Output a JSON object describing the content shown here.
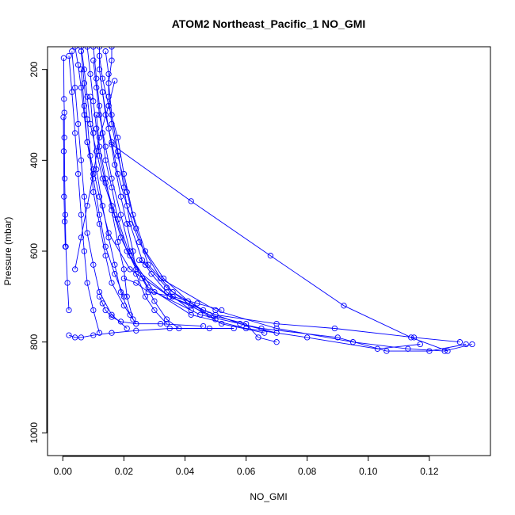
{
  "chart_data": {
    "type": "line",
    "title": "ATOM2 Northeast_Pacific_1 NO_GMI",
    "xlabel": "NO_GMI",
    "ylabel": "Pressure (mbar)",
    "xlim": [
      -0.005,
      0.14
    ],
    "ylim": [
      1050,
      150
    ],
    "y_reversed": true,
    "x_ticks": [
      0.0,
      0.02,
      0.04,
      0.06,
      0.08,
      0.1,
      0.12
    ],
    "x_tick_labels": [
      "0.00",
      "0.02",
      "0.04",
      "0.06",
      "0.08",
      "0.10",
      "0.12"
    ],
    "y_ticks": [
      200,
      400,
      600,
      800,
      1000
    ],
    "y_tick_labels": [
      "200",
      "400",
      "600",
      "800",
      "1000"
    ],
    "grid": false,
    "legend": "none",
    "marker": "open-circle",
    "line_color": "#0000ff",
    "series": [
      {
        "x": [
          0.004,
          0.005,
          0.006,
          0.007,
          0.008,
          0.01,
          0.012,
          0.015,
          0.022,
          0.035,
          0.048,
          0.06,
          0.064,
          0.07
        ],
        "y": [
          150,
          190,
          240,
          300,
          360,
          420,
          480,
          560,
          640,
          700,
          740,
          760,
          790,
          800
        ]
      },
      {
        "x": [
          0.006,
          0.007,
          0.008,
          0.009,
          0.011,
          0.013,
          0.016,
          0.019,
          0.024,
          0.035,
          0.05,
          0.07,
          0.089,
          0.115,
          0.13
        ],
        "y": [
          150,
          200,
          260,
          320,
          380,
          440,
          500,
          570,
          640,
          700,
          740,
          760,
          770,
          790,
          800
        ]
      },
      {
        "x": [
          0.008,
          0.009,
          0.01,
          0.011,
          0.012,
          0.014,
          0.017,
          0.021,
          0.028,
          0.042,
          0.06,
          0.08,
          0.103,
          0.117
        ],
        "y": [
          150,
          210,
          270,
          330,
          390,
          450,
          520,
          600,
          680,
          740,
          770,
          790,
          815,
          805
        ]
      },
      {
        "x": [
          0.01,
          0.011,
          0.012,
          0.013,
          0.014,
          0.016,
          0.018,
          0.022,
          0.03,
          0.045,
          0.065,
          0.09,
          0.106,
          0.12,
          0.132
        ],
        "y": [
          150,
          220,
          280,
          340,
          400,
          460,
          530,
          610,
          690,
          740,
          770,
          790,
          820,
          820,
          805
        ]
      },
      {
        "x": [
          0.012,
          0.012,
          0.013,
          0.014,
          0.016,
          0.018,
          0.021,
          0.025,
          0.032,
          0.05,
          0.07,
          0.095,
          0.113,
          0.125,
          0.134
        ],
        "y": [
          150,
          200,
          250,
          300,
          360,
          430,
          500,
          580,
          660,
          730,
          770,
          800,
          815,
          820,
          805
        ]
      },
      {
        "x": [
          0.016,
          0.016,
          0.015,
          0.016,
          0.018,
          0.02,
          0.022,
          0.026,
          0.034,
          0.042,
          0.052,
          0.066
        ],
        "y": [
          150,
          180,
          230,
          300,
          380,
          460,
          540,
          620,
          680,
          720,
          760,
          780
        ]
      },
      {
        "x": [
          0.014,
          0.015,
          0.015,
          0.016,
          0.018,
          0.021,
          0.024,
          0.028,
          0.036,
          0.046,
          0.058,
          0.07
        ],
        "y": [
          160,
          210,
          260,
          320,
          390,
          470,
          550,
          630,
          690,
          730,
          760,
          780
        ]
      },
      {
        "x": [
          0.012,
          0.013,
          0.015,
          0.018,
          0.02,
          0.023,
          0.027,
          0.033,
          0.041,
          0.05
        ],
        "y": [
          170,
          220,
          280,
          350,
          430,
          520,
          600,
          660,
          710,
          750
        ]
      },
      {
        "x": [
          0.01,
          0.011,
          0.012,
          0.014,
          0.016,
          0.019,
          0.022,
          0.026,
          0.03,
          0.034,
          0.038
        ],
        "y": [
          180,
          240,
          300,
          370,
          440,
          520,
          600,
          660,
          710,
          750,
          770
        ]
      },
      {
        "x": [
          0.006,
          0.007,
          0.008,
          0.009,
          0.01,
          0.012,
          0.014,
          0.016,
          0.02,
          0.024
        ],
        "y": [
          160,
          230,
          310,
          390,
          470,
          540,
          610,
          670,
          720,
          760
        ]
      },
      {
        "x": [
          0.003,
          0.004,
          0.005,
          0.006,
          0.007,
          0.008,
          0.01,
          0.012,
          0.016,
          0.021
        ],
        "y": [
          160,
          240,
          320,
          400,
          480,
          560,
          630,
          690,
          740,
          770
        ]
      },
      {
        "x": [
          0.002,
          0.003,
          0.004,
          0.005,
          0.006,
          0.007,
          0.008,
          0.01,
          0.012
        ],
        "y": [
          170,
          250,
          340,
          430,
          520,
          600,
          670,
          730,
          780
        ]
      },
      {
        "x": [
          0.013,
          0.015,
          0.017,
          0.019,
          0.021,
          0.023,
          0.024,
          0.027,
          0.03,
          0.034
        ],
        "y": [
          250,
          330,
          410,
          480,
          540,
          600,
          650,
          700,
          730,
          760
        ]
      },
      {
        "x": [
          0.009,
          0.01,
          0.011,
          0.013,
          0.015,
          0.017,
          0.019,
          0.022
        ],
        "y": [
          260,
          340,
          420,
          500,
          570,
          630,
          690,
          740
        ]
      },
      {
        "x": [
          0.011,
          0.012,
          0.014,
          0.016,
          0.018,
          0.02,
          0.021,
          0.023
        ],
        "y": [
          300,
          370,
          440,
          510,
          580,
          640,
          700,
          750
        ]
      },
      {
        "x": [
          0.006,
          0.007,
          0.008,
          0.01,
          0.012,
          0.014,
          0.017,
          0.02
        ],
        "y": [
          200,
          280,
          360,
          440,
          520,
          590,
          650,
          700
        ]
      },
      {
        "x": [
          0.017,
          0.015,
          0.012,
          0.01,
          0.008,
          0.006,
          0.004
        ],
        "y": [
          225,
          280,
          350,
          430,
          500,
          570,
          640
        ]
      },
      {
        "x": [
          0.016,
          0.042,
          0.068,
          0.092,
          0.114,
          0.126
        ],
        "y": [
          365,
          490,
          610,
          720,
          790,
          820
        ]
      },
      {
        "x": [
          0.0003,
          0.0004,
          0.0005,
          0.0005,
          0.0006,
          0.0008,
          0.001,
          0.0015,
          0.002
        ],
        "y": [
          175,
          265,
          295,
          350,
          440,
          520,
          590,
          670,
          730
        ]
      },
      {
        "x": [
          0.0002,
          0.0003,
          0.0004,
          0.0006,
          0.0008
        ],
        "y": [
          305,
          380,
          480,
          535,
          590
        ]
      },
      {
        "x": [
          0.002,
          0.004,
          0.006,
          0.01,
          0.016,
          0.024,
          0.035,
          0.048,
          0.056
        ],
        "y": [
          785,
          790,
          790,
          785,
          780,
          775,
          770,
          770,
          770
        ]
      },
      {
        "x": [
          0.02,
          0.024,
          0.028,
          0.036,
          0.044,
          0.052
        ],
        "y": [
          660,
          670,
          690,
          700,
          715,
          730
        ]
      },
      {
        "x": [
          0.025,
          0.027,
          0.029,
          0.034,
          0.042
        ],
        "y": [
          620,
          630,
          650,
          690,
          730
        ]
      },
      {
        "x": [
          0.012,
          0.013,
          0.014,
          0.016,
          0.019,
          0.024,
          0.032,
          0.046
        ],
        "y": [
          700,
          715,
          730,
          745,
          755,
          760,
          760,
          765
        ]
      }
    ]
  }
}
